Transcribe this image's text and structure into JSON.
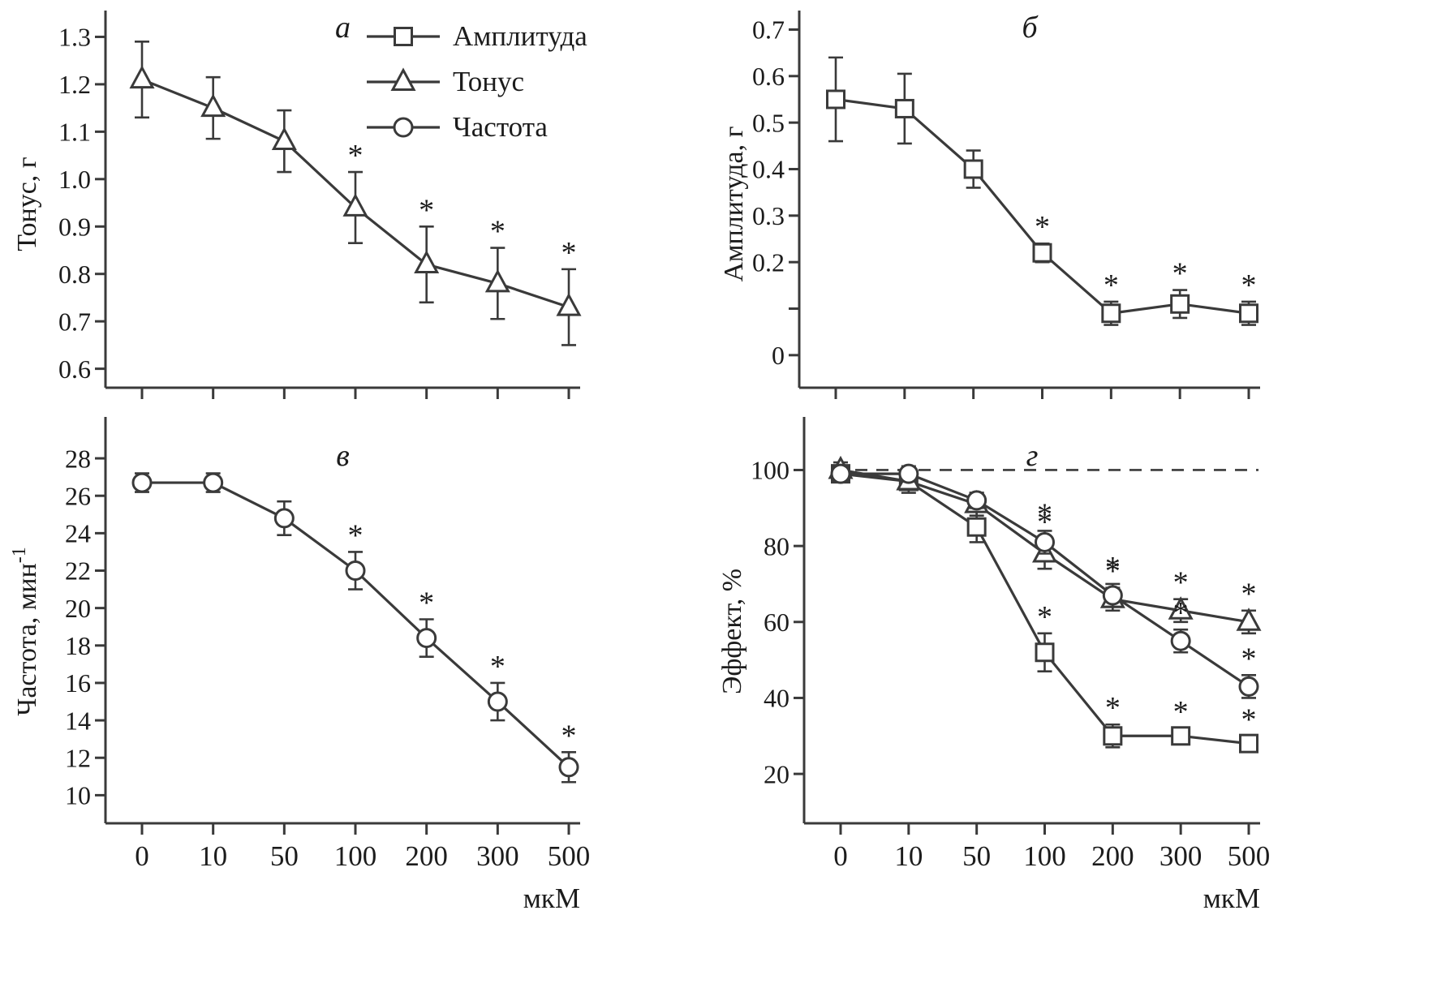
{
  "figure": {
    "background": "#ffffff",
    "line_color": "#3a3a3a",
    "text_color": "#1c1c1c",
    "significance_marker": "*",
    "x_unit_label": "мкМ",
    "x_categories": [
      "0",
      "10",
      "50",
      "100",
      "200",
      "300",
      "500"
    ]
  },
  "legend": {
    "position": "top-right-of-panel-a",
    "entries": [
      {
        "marker": "square",
        "label": "Амплитуда"
      },
      {
        "marker": "triangle",
        "label": "Тонус"
      },
      {
        "marker": "circle",
        "label": "Частота"
      }
    ]
  },
  "chart_data": [
    {
      "id": "a",
      "type": "line",
      "title": "а",
      "ylabel": "Тонус, г",
      "ylim": [
        0.56,
        1.335
      ],
      "yticks": [
        0.6,
        0.7,
        0.8,
        0.9,
        1.0,
        1.1,
        1.2,
        1.3
      ],
      "ytick_labels": [
        "0.6",
        "0.7",
        "0.8",
        "0.9",
        "1.0",
        "1.1",
        "1.2",
        "1.3"
      ],
      "x_tick_labels_visible": false,
      "grid": false,
      "legend_here": true,
      "series": [
        {
          "name": "Тонус",
          "marker": "triangle",
          "values": [
            1.21,
            1.15,
            1.08,
            0.94,
            0.82,
            0.78,
            0.73
          ],
          "errors": [
            0.08,
            0.065,
            0.065,
            0.075,
            0.08,
            0.075,
            0.08
          ],
          "significant": [
            false,
            false,
            false,
            true,
            true,
            true,
            true
          ]
        }
      ]
    },
    {
      "id": "b",
      "type": "line",
      "title": "б",
      "ylabel": "Амплитуда, г",
      "ylim": [
        -0.07,
        0.72
      ],
      "yticks": [
        0,
        0.2,
        0.3,
        0.4,
        0.5,
        0.6,
        0.7
      ],
      "ytick_labels": [
        "0",
        "0.2",
        "0.3",
        "0.4",
        "0.5",
        "0.6",
        "0.7"
      ],
      "extra_unlabeled_yticks": [
        0.1
      ],
      "x_tick_labels_visible": false,
      "grid": false,
      "series": [
        {
          "name": "Амплитуда",
          "marker": "square",
          "values": [
            0.55,
            0.53,
            0.4,
            0.22,
            0.09,
            0.11,
            0.09
          ],
          "errors": [
            0.09,
            0.075,
            0.04,
            0.02,
            0.025,
            0.03,
            0.025
          ],
          "significant": [
            false,
            false,
            false,
            true,
            true,
            true,
            true
          ]
        }
      ]
    },
    {
      "id": "v",
      "type": "line",
      "title": "в",
      "ylabel": "Частота, мин",
      "ylabel_superscript": "-1",
      "ylim": [
        8.5,
        29
      ],
      "yticks": [
        10,
        12,
        14,
        16,
        18,
        20,
        22,
        24,
        26,
        28
      ],
      "ytick_labels": [
        "10",
        "12",
        "14",
        "16",
        "18",
        "20",
        "22",
        "24",
        "26",
        "28"
      ],
      "x_tick_labels_visible": true,
      "grid": false,
      "series": [
        {
          "name": "Частота",
          "marker": "circle",
          "values": [
            26.7,
            26.7,
            24.8,
            22.0,
            18.4,
            15.0,
            11.5
          ],
          "errors": [
            0.5,
            0.5,
            0.9,
            1.0,
            1.0,
            1.0,
            0.8
          ],
          "significant": [
            false,
            false,
            false,
            true,
            true,
            true,
            true
          ]
        }
      ]
    },
    {
      "id": "g",
      "type": "line",
      "title": "г",
      "ylabel": "Эффект, %",
      "ylim": [
        7,
        108
      ],
      "yticks": [
        20,
        40,
        60,
        80,
        100
      ],
      "ytick_labels": [
        "20",
        "40",
        "60",
        "80",
        "100"
      ],
      "x_tick_labels_visible": true,
      "grid": false,
      "reference_line": {
        "y": 100,
        "style": "dashed"
      },
      "series": [
        {
          "name": "Амплитуда",
          "marker": "square",
          "values": [
            99,
            97,
            85,
            52,
            30,
            30,
            28
          ],
          "errors": [
            2,
            2,
            4,
            5,
            3,
            2,
            2
          ],
          "significant": [
            false,
            false,
            false,
            true,
            true,
            true,
            true
          ]
        },
        {
          "name": "Тонус",
          "marker": "triangle",
          "values": [
            100,
            97,
            91,
            78,
            66,
            63,
            60
          ],
          "errors": [
            2,
            3,
            3,
            4,
            3,
            3,
            3
          ],
          "significant": [
            false,
            false,
            false,
            true,
            true,
            true,
            true
          ]
        },
        {
          "name": "Частота",
          "marker": "circle",
          "values": [
            99,
            99,
            92,
            81,
            67,
            55,
            43
          ],
          "errors": [
            2,
            2,
            2,
            3,
            3,
            3,
            3
          ],
          "significant": [
            false,
            false,
            false,
            true,
            true,
            true,
            true
          ]
        }
      ]
    }
  ]
}
